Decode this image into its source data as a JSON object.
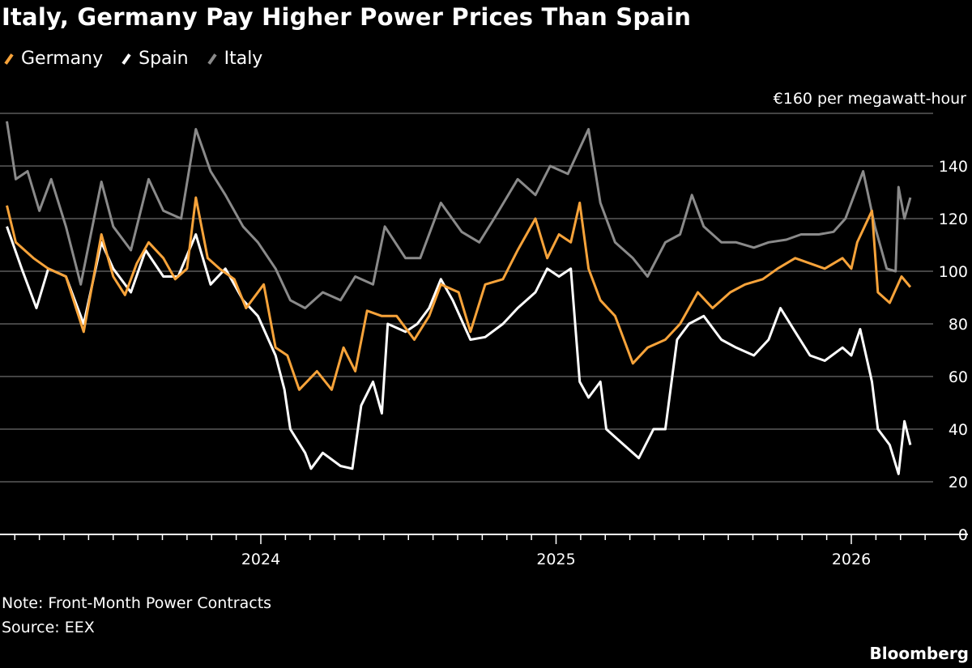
{
  "chart_data": {
    "type": "line",
    "title": "Italy, Germany Pay Higher Power Prices Than Spain",
    "ylabel": "€160 per megawatt-hour",
    "xlabel": "",
    "ylim": [
      0,
      160
    ],
    "xlim": [
      2023.1,
      2026.5
    ],
    "yticks": [
      0,
      20,
      40,
      60,
      80,
      100,
      120,
      140
    ],
    "ytick_labels": [
      "0",
      "20",
      "40",
      "60",
      "80",
      "100",
      "120",
      "140"
    ],
    "xticks": [
      2024,
      2025,
      2026
    ],
    "xtick_labels": [
      "2024",
      "2025",
      "2026"
    ],
    "grid": true,
    "legend_position": "top-left",
    "series": [
      {
        "name": "Germany",
        "color": "#f7a33a",
        "points": [
          [
            2023.14,
            125
          ],
          [
            2023.17,
            111
          ],
          [
            2023.23,
            105
          ],
          [
            2023.28,
            101
          ],
          [
            2023.34,
            98
          ],
          [
            2023.4,
            77
          ],
          [
            2023.46,
            114
          ],
          [
            2023.5,
            98
          ],
          [
            2023.54,
            91
          ],
          [
            2023.58,
            103
          ],
          [
            2023.62,
            111
          ],
          [
            2023.67,
            105
          ],
          [
            2023.71,
            97
          ],
          [
            2023.75,
            101
          ],
          [
            2023.78,
            128
          ],
          [
            2023.82,
            105
          ],
          [
            2023.86,
            101
          ],
          [
            2023.91,
            97
          ],
          [
            2023.95,
            86
          ],
          [
            2024.01,
            95
          ],
          [
            2024.05,
            71
          ],
          [
            2024.09,
            68
          ],
          [
            2024.13,
            55
          ],
          [
            2024.19,
            62
          ],
          [
            2024.24,
            55
          ],
          [
            2024.28,
            71
          ],
          [
            2024.32,
            62
          ],
          [
            2024.36,
            85
          ],
          [
            2024.41,
            83
          ],
          [
            2024.46,
            83
          ],
          [
            2024.52,
            74
          ],
          [
            2024.57,
            83
          ],
          [
            2024.61,
            95
          ],
          [
            2024.67,
            92
          ],
          [
            2024.71,
            77
          ],
          [
            2024.76,
            95
          ],
          [
            2024.82,
            97
          ],
          [
            2024.87,
            108
          ],
          [
            2024.93,
            120
          ],
          [
            2024.97,
            105
          ],
          [
            2025.01,
            114
          ],
          [
            2025.05,
            111
          ],
          [
            2025.08,
            126
          ],
          [
            2025.11,
            101
          ],
          [
            2025.15,
            89
          ],
          [
            2025.2,
            83
          ],
          [
            2025.26,
            65
          ],
          [
            2025.31,
            71
          ],
          [
            2025.37,
            74
          ],
          [
            2025.42,
            80
          ],
          [
            2025.48,
            92
          ],
          [
            2025.53,
            86
          ],
          [
            2025.59,
            92
          ],
          [
            2025.64,
            95
          ],
          [
            2025.7,
            97
          ],
          [
            2025.75,
            101
          ],
          [
            2025.81,
            105
          ],
          [
            2025.86,
            103
          ],
          [
            2025.91,
            101
          ],
          [
            2025.97,
            105
          ],
          [
            2026.0,
            101
          ],
          [
            2026.02,
            111
          ],
          [
            2026.07,
            123
          ],
          [
            2026.09,
            92
          ],
          [
            2026.13,
            88
          ],
          [
            2026.17,
            98
          ],
          [
            2026.2,
            94
          ]
        ]
      },
      {
        "name": "Spain",
        "color": "#ffffff",
        "points": [
          [
            2023.14,
            117
          ],
          [
            2023.19,
            101
          ],
          [
            2023.24,
            86
          ],
          [
            2023.28,
            101
          ],
          [
            2023.34,
            98
          ],
          [
            2023.4,
            80
          ],
          [
            2023.46,
            111
          ],
          [
            2023.5,
            101
          ],
          [
            2023.56,
            92
          ],
          [
            2023.61,
            108
          ],
          [
            2023.67,
            98
          ],
          [
            2023.72,
            98
          ],
          [
            2023.78,
            114
          ],
          [
            2023.83,
            95
          ],
          [
            2023.88,
            101
          ],
          [
            2023.94,
            89
          ],
          [
            2023.99,
            83
          ],
          [
            2024.05,
            68
          ],
          [
            2024.08,
            55
          ],
          [
            2024.1,
            40
          ],
          [
            2024.15,
            31
          ],
          [
            2024.17,
            25
          ],
          [
            2024.21,
            31
          ],
          [
            2024.27,
            26
          ],
          [
            2024.31,
            25
          ],
          [
            2024.34,
            49
          ],
          [
            2024.38,
            58
          ],
          [
            2024.41,
            46
          ],
          [
            2024.43,
            80
          ],
          [
            2024.49,
            77
          ],
          [
            2024.53,
            80
          ],
          [
            2024.57,
            86
          ],
          [
            2024.61,
            97
          ],
          [
            2024.65,
            89
          ],
          [
            2024.71,
            74
          ],
          [
            2024.76,
            75
          ],
          [
            2024.82,
            80
          ],
          [
            2024.87,
            86
          ],
          [
            2024.93,
            92
          ],
          [
            2024.97,
            101
          ],
          [
            2025.01,
            98
          ],
          [
            2025.05,
            101
          ],
          [
            2025.08,
            58
          ],
          [
            2025.11,
            52
          ],
          [
            2025.15,
            58
          ],
          [
            2025.17,
            40
          ],
          [
            2025.23,
            34
          ],
          [
            2025.28,
            29
          ],
          [
            2025.33,
            40
          ],
          [
            2025.37,
            40
          ],
          [
            2025.41,
            74
          ],
          [
            2025.45,
            80
          ],
          [
            2025.5,
            83
          ],
          [
            2025.56,
            74
          ],
          [
            2025.61,
            71
          ],
          [
            2025.67,
            68
          ],
          [
            2025.72,
            74
          ],
          [
            2025.76,
            86
          ],
          [
            2025.81,
            77
          ],
          [
            2025.86,
            68
          ],
          [
            2025.91,
            66
          ],
          [
            2025.97,
            71
          ],
          [
            2026.0,
            68
          ],
          [
            2026.03,
            78
          ],
          [
            2026.07,
            58
          ],
          [
            2026.09,
            40
          ],
          [
            2026.13,
            34
          ],
          [
            2026.16,
            23
          ],
          [
            2026.18,
            43
          ],
          [
            2026.2,
            34
          ]
        ]
      },
      {
        "name": "Italy",
        "color": "#8a8a8a",
        "points": [
          [
            2023.14,
            157
          ],
          [
            2023.17,
            135
          ],
          [
            2023.21,
            138
          ],
          [
            2023.25,
            123
          ],
          [
            2023.29,
            135
          ],
          [
            2023.34,
            117
          ],
          [
            2023.39,
            95
          ],
          [
            2023.46,
            134
          ],
          [
            2023.5,
            117
          ],
          [
            2023.56,
            108
          ],
          [
            2023.62,
            135
          ],
          [
            2023.67,
            123
          ],
          [
            2023.73,
            120
          ],
          [
            2023.78,
            154
          ],
          [
            2023.83,
            138
          ],
          [
            2023.88,
            129
          ],
          [
            2023.94,
            117
          ],
          [
            2023.99,
            111
          ],
          [
            2024.05,
            101
          ],
          [
            2024.1,
            89
          ],
          [
            2024.15,
            86
          ],
          [
            2024.21,
            92
          ],
          [
            2024.27,
            89
          ],
          [
            2024.32,
            98
          ],
          [
            2024.38,
            95
          ],
          [
            2024.42,
            117
          ],
          [
            2024.49,
            105
          ],
          [
            2024.54,
            105
          ],
          [
            2024.61,
            126
          ],
          [
            2024.68,
            115
          ],
          [
            2024.74,
            111
          ],
          [
            2024.79,
            120
          ],
          [
            2024.87,
            135
          ],
          [
            2024.93,
            129
          ],
          [
            2024.98,
            140
          ],
          [
            2025.04,
            137
          ],
          [
            2025.11,
            154
          ],
          [
            2025.15,
            126
          ],
          [
            2025.2,
            111
          ],
          [
            2025.26,
            105
          ],
          [
            2025.31,
            98
          ],
          [
            2025.37,
            111
          ],
          [
            2025.42,
            114
          ],
          [
            2025.46,
            129
          ],
          [
            2025.5,
            117
          ],
          [
            2025.56,
            111
          ],
          [
            2025.61,
            111
          ],
          [
            2025.67,
            109
          ],
          [
            2025.72,
            111
          ],
          [
            2025.78,
            112
          ],
          [
            2025.83,
            114
          ],
          [
            2025.89,
            114
          ],
          [
            2025.94,
            115
          ],
          [
            2025.98,
            120
          ],
          [
            2026.04,
            138
          ],
          [
            2026.08,
            117
          ],
          [
            2026.12,
            101
          ],
          [
            2026.15,
            100
          ],
          [
            2026.16,
            132
          ],
          [
            2026.18,
            120
          ],
          [
            2026.2,
            128
          ]
        ]
      }
    ],
    "notes": [
      "Note: Front-Month Power Contracts",
      "Source: EEX"
    ],
    "brand": "Bloomberg"
  }
}
